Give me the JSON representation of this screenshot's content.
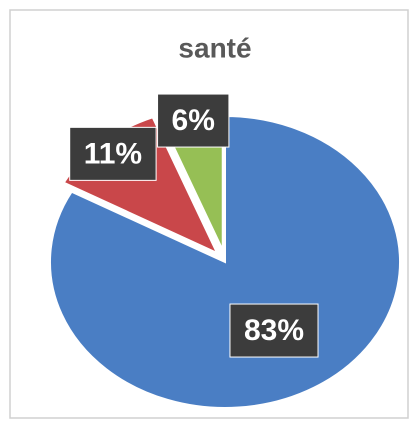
{
  "chart_data": {
    "type": "pie",
    "title": "santé",
    "categories": [
      null,
      null,
      null
    ],
    "values": [
      83,
      11,
      6
    ],
    "value_labels": [
      "83%",
      "11%",
      "6%"
    ],
    "colors": [
      "#4a7ec4",
      "#c9474a",
      "#96bf55"
    ]
  }
}
